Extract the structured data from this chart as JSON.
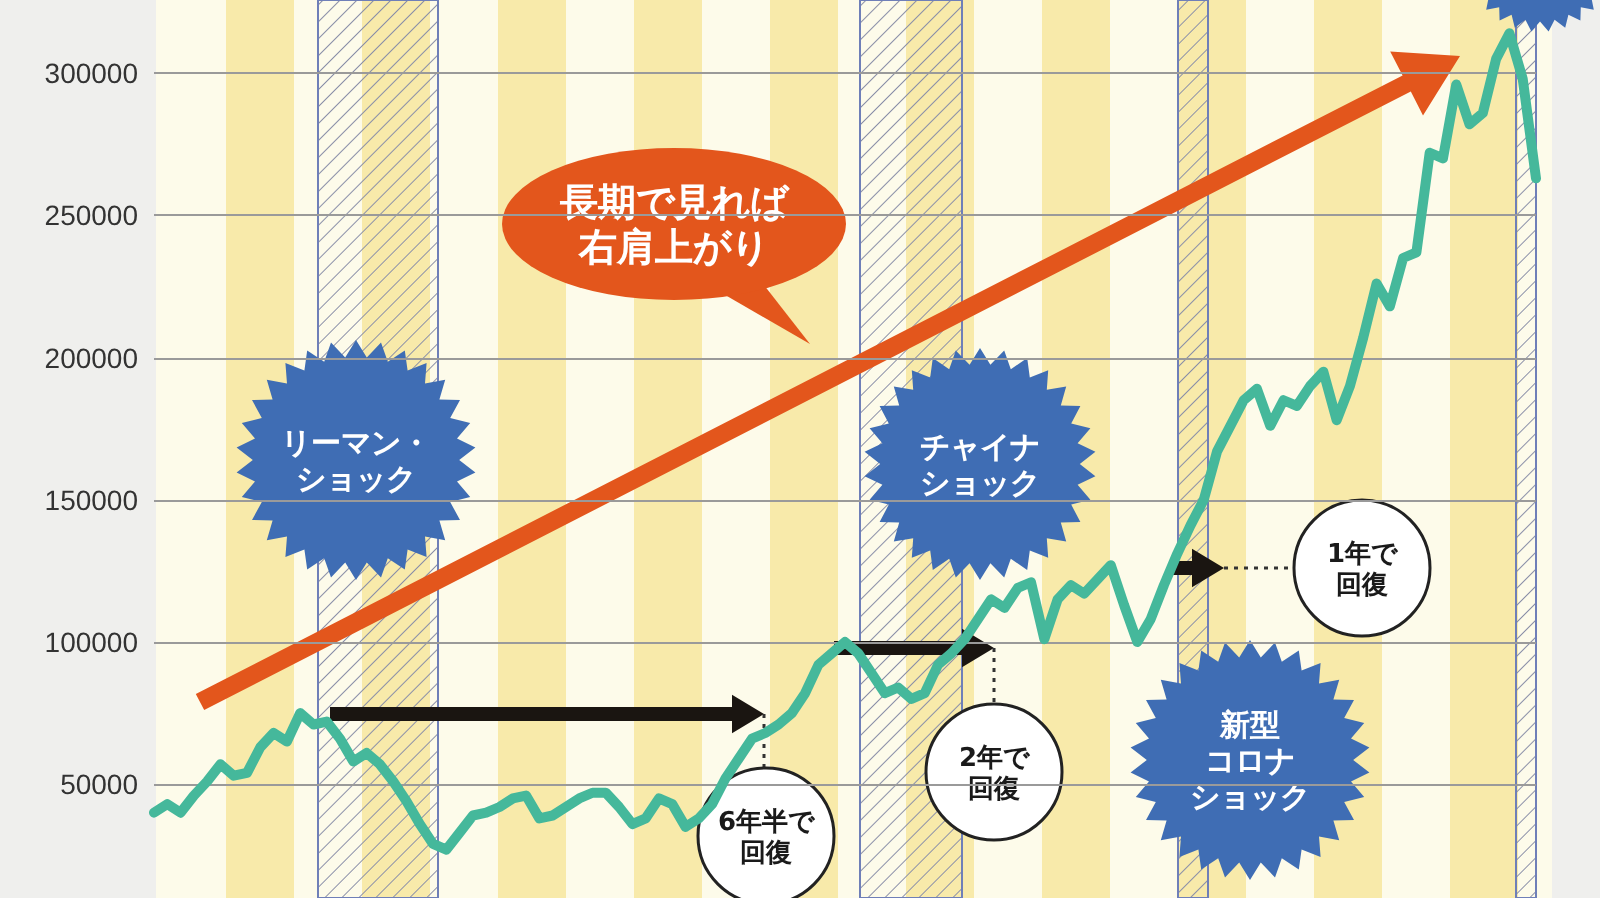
{
  "chart_data": {
    "type": "line",
    "tick_labels": "y",
    "grid": "y",
    "line_style": "solid",
    "ylim": [
      10000,
      325000
    ],
    "yticks": [
      50000,
      100000,
      150000,
      200000,
      250000,
      300000
    ],
    "categories": [
      null,
      null,
      null,
      null,
      null,
      null,
      null,
      null,
      null,
      null,
      null,
      null,
      null,
      null,
      null,
      null,
      null,
      null,
      null,
      null,
      null,
      null,
      null,
      null,
      null,
      null,
      null,
      null,
      null,
      null,
      null,
      null,
      null,
      null,
      null,
      null,
      null,
      null,
      null,
      null,
      null,
      null,
      null,
      null,
      null,
      null,
      null,
      null,
      null,
      null,
      null,
      null,
      null,
      null,
      null,
      null,
      null,
      null,
      null,
      null,
      null,
      null,
      null,
      null,
      null,
      null,
      null,
      null,
      null,
      null,
      null,
      null,
      null,
      null,
      null,
      null,
      null,
      null,
      null,
      null,
      null,
      null,
      null,
      null,
      null,
      null,
      null,
      null,
      null,
      null,
      null,
      null,
      null,
      null,
      null,
      null,
      null,
      null,
      null,
      null,
      null,
      null,
      null,
      null,
      null
    ],
    "series": [
      {
        "color": "#45b89b",
        "values": [
          40000,
          43000,
          40000,
          46000,
          51000,
          57000,
          53000,
          54000,
          63000,
          68000,
          65000,
          75000,
          71000,
          72000,
          66000,
          58000,
          61000,
          57000,
          51000,
          44000,
          36000,
          29000,
          27000,
          33000,
          39000,
          40000,
          42000,
          45000,
          46000,
          38000,
          39000,
          42000,
          45000,
          47000,
          47000,
          42000,
          36000,
          38000,
          45000,
          43000,
          35000,
          38000,
          43000,
          52000,
          59000,
          66000,
          68000,
          71000,
          75000,
          82000,
          92000,
          96000,
          100000,
          96000,
          89000,
          82000,
          84000,
          80000,
          82000,
          92000,
          96000,
          101000,
          108000,
          115000,
          112000,
          119000,
          121000,
          101000,
          115000,
          120000,
          117000,
          122000,
          127000,
          113000,
          100000,
          108000,
          120000,
          131000,
          141000,
          150000,
          167000,
          176000,
          185000,
          189000,
          176000,
          185000,
          183000,
          190000,
          195000,
          178000,
          190000,
          207000,
          226000,
          218000,
          235000,
          237000,
          272000,
          270000,
          296000,
          282000,
          286000,
          305000,
          314000,
          298000,
          263000
        ]
      }
    ],
    "annotations": [
      "長期で見れば右肩上がり",
      "リーマン・ショック",
      "チャイナショック",
      "新型コロナショック",
      "6年半で回復",
      "2年で回復",
      "1年で回復"
    ]
  }
}
